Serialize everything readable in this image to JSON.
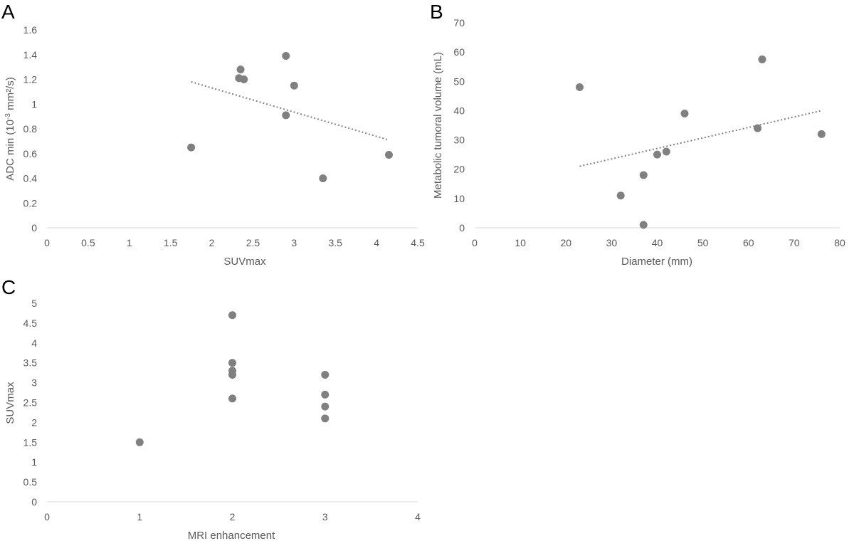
{
  "colors": {
    "marker": "#808080",
    "text": "#595959",
    "axis": "#d9d9d9"
  },
  "chart_data": [
    {
      "panel": "A",
      "type": "scatter",
      "xlabel": "SUVmax",
      "ylabel_main": "ADC min (10",
      "ylabel_sup": "-3",
      "ylabel_rest": " mm²/s)",
      "xlim": [
        0,
        4.5
      ],
      "ylim": [
        0,
        1.6
      ],
      "xticks": [
        "0",
        "0.5",
        "1",
        "1.5",
        "2",
        "2.5",
        "3",
        "3.5",
        "4",
        "4.5"
      ],
      "yticks": [
        "0",
        "0.2",
        "0.4",
        "0.6",
        "0.8",
        "1",
        "1.2",
        "1.4",
        "1.6"
      ],
      "points": [
        {
          "x": 1.75,
          "y": 0.65
        },
        {
          "x": 2.33,
          "y": 1.21
        },
        {
          "x": 2.35,
          "y": 1.28
        },
        {
          "x": 2.39,
          "y": 1.2
        },
        {
          "x": 2.9,
          "y": 1.39
        },
        {
          "x": 2.9,
          "y": 0.91
        },
        {
          "x": 3.0,
          "y": 1.15
        },
        {
          "x": 3.35,
          "y": 0.4
        },
        {
          "x": 4.15,
          "y": 0.59
        }
      ],
      "trendline": {
        "x1": 1.75,
        "y1": 1.18,
        "x2": 4.15,
        "y2": 0.71
      },
      "grid": false
    },
    {
      "panel": "B",
      "type": "scatter",
      "xlabel": "Diameter (mm)",
      "ylabel": "Metabolic tumoral volume (mL)",
      "xlim": [
        0,
        80
      ],
      "ylim": [
        0,
        70
      ],
      "xticks": [
        "0",
        "10",
        "20",
        "30",
        "40",
        "50",
        "60",
        "70",
        "80"
      ],
      "yticks": [
        "0",
        "10",
        "20",
        "30",
        "40",
        "50",
        "60",
        "70"
      ],
      "points": [
        {
          "x": 23,
          "y": 48
        },
        {
          "x": 32,
          "y": 11
        },
        {
          "x": 37,
          "y": 18
        },
        {
          "x": 37,
          "y": 1
        },
        {
          "x": 40,
          "y": 25
        },
        {
          "x": 42,
          "y": 26
        },
        {
          "x": 46,
          "y": 39
        },
        {
          "x": 62,
          "y": 34
        },
        {
          "x": 63,
          "y": 57.5
        },
        {
          "x": 76,
          "y": 32
        }
      ],
      "trendline": {
        "x1": 23,
        "y1": 21,
        "x2": 76,
        "y2": 40
      },
      "grid": false
    },
    {
      "panel": "C",
      "type": "scatter",
      "xlabel": "MRI enhancement",
      "ylabel": "SUVmax",
      "xlim": [
        0,
        4
      ],
      "ylim": [
        0,
        5
      ],
      "xticks": [
        "0",
        "1",
        "2",
        "3",
        "4"
      ],
      "yticks": [
        "0",
        "0.5",
        "1",
        "1.5",
        "2",
        "2.5",
        "3",
        "3.5",
        "4",
        "4.5",
        "5"
      ],
      "points": [
        {
          "x": 1,
          "y": 1.5
        },
        {
          "x": 2,
          "y": 4.7
        },
        {
          "x": 2,
          "y": 3.5
        },
        {
          "x": 2,
          "y": 3.3
        },
        {
          "x": 2,
          "y": 3.2
        },
        {
          "x": 2,
          "y": 2.6
        },
        {
          "x": 3,
          "y": 3.2
        },
        {
          "x": 3,
          "y": 2.7
        },
        {
          "x": 3,
          "y": 2.4
        },
        {
          "x": 3,
          "y": 2.1
        }
      ],
      "trendline": null,
      "grid": false
    }
  ]
}
